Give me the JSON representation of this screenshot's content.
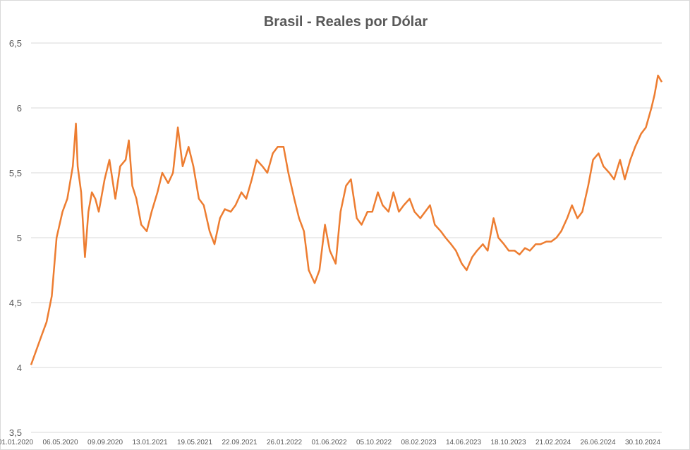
{
  "chart_data": {
    "type": "line",
    "title": "Brasil - Reales por Dólar",
    "xlabel": "",
    "ylabel": "",
    "ylim": [
      3.5,
      6.5
    ],
    "yticks": [
      3.5,
      4,
      4.5,
      5,
      5.5,
      6,
      6.5
    ],
    "yticklabels": [
      "3,5",
      "4",
      "4,5",
      "5",
      "5,5",
      "6",
      "6,5"
    ],
    "xticklabels": [
      "01.01.2020",
      "06.05.2020",
      "09.09.2020",
      "13.01.2021",
      "19.05.2021",
      "22.09.2021",
      "26.01.2022",
      "01.06.2022",
      "05.10.2022",
      "08.02.2023",
      "14.06.2023",
      "18.10.2023",
      "21.02.2024",
      "26.06.2024",
      "30.10.2024"
    ],
    "grid": true,
    "legend": "none",
    "color": "#ED7D31",
    "x": [
      "01.01.2020",
      "01.02.2020",
      "15.02.2020",
      "01.03.2020",
      "15.03.2020",
      "01.04.2020",
      "15.04.2020",
      "01.05.2020",
      "10.05.2020",
      "15.05.2020",
      "25.05.2020",
      "05.06.2020",
      "15.06.2020",
      "25.06.2020",
      "05.07.2020",
      "15.07.2020",
      "01.08.2020",
      "15.08.2020",
      "01.09.2020",
      "15.09.2020",
      "01.10.2020",
      "10.10.2020",
      "20.10.2020",
      "01.11.2020",
      "15.11.2020",
      "01.12.2020",
      "15.12.2020",
      "01.01.2021",
      "15.01.2021",
      "01.02.2021",
      "15.02.2021",
      "01.03.2021",
      "15.03.2021",
      "01.04.2021",
      "15.04.2021",
      "01.05.2021",
      "15.05.2021",
      "01.06.2021",
      "15.06.2021",
      "01.07.2021",
      "15.07.2021",
      "01.08.2021",
      "15.08.2021",
      "01.09.2021",
      "15.09.2021",
      "01.10.2021",
      "15.10.2021",
      "01.11.2021",
      "15.11.2021",
      "01.12.2021",
      "15.12.2021",
      "01.01.2022",
      "15.01.2022",
      "01.02.2022",
      "15.02.2022",
      "01.03.2022",
      "15.03.2022",
      "01.04.2022",
      "15.04.2022",
      "01.05.2022",
      "15.05.2022",
      "01.06.2022",
      "15.06.2022",
      "01.07.2022",
      "15.07.2022",
      "01.08.2022",
      "15.08.2022",
      "01.09.2022",
      "15.09.2022",
      "01.10.2022",
      "15.10.2022",
      "01.11.2022",
      "15.11.2022",
      "01.12.2022",
      "15.12.2022",
      "01.01.2023",
      "15.01.2023",
      "01.02.2023",
      "15.02.2023",
      "01.03.2023",
      "15.03.2023",
      "01.04.2023",
      "15.04.2023",
      "01.05.2023",
      "15.05.2023",
      "01.06.2023",
      "15.06.2023",
      "01.07.2023",
      "15.07.2023",
      "01.08.2023",
      "15.08.2023",
      "01.09.2023",
      "15.09.2023",
      "01.10.2023",
      "15.10.2023",
      "01.11.2023",
      "15.11.2023",
      "01.12.2023",
      "15.12.2023",
      "01.01.2024",
      "15.01.2024",
      "01.02.2024",
      "15.02.2024",
      "01.03.2024",
      "15.03.2024",
      "01.04.2024",
      "15.04.2024",
      "01.05.2024",
      "15.05.2024",
      "01.06.2024",
      "15.06.2024",
      "01.07.2024",
      "15.07.2024",
      "01.08.2024",
      "15.08.2024",
      "01.09.2024",
      "15.09.2024",
      "01.10.2024",
      "15.10.2024",
      "01.11.2024",
      "15.11.2024",
      "01.12.2024",
      "10.12.2024",
      "20.12.2024",
      "31.12.2024"
    ],
    "values": [
      4.02,
      4.25,
      4.35,
      4.55,
      5.0,
      5.2,
      5.3,
      5.55,
      5.88,
      5.55,
      5.35,
      4.85,
      5.2,
      5.35,
      5.3,
      5.2,
      5.45,
      5.6,
      5.3,
      5.55,
      5.6,
      5.75,
      5.4,
      5.3,
      5.1,
      5.05,
      5.2,
      5.35,
      5.5,
      5.42,
      5.5,
      5.85,
      5.55,
      5.7,
      5.55,
      5.3,
      5.25,
      5.05,
      4.95,
      5.15,
      5.22,
      5.2,
      5.25,
      5.35,
      5.3,
      5.45,
      5.6,
      5.55,
      5.5,
      5.65,
      5.7,
      5.7,
      5.5,
      5.3,
      5.15,
      5.05,
      4.75,
      4.65,
      4.75,
      5.1,
      4.9,
      4.8,
      5.2,
      5.4,
      5.45,
      5.15,
      5.1,
      5.2,
      5.2,
      5.35,
      5.25,
      5.2,
      5.35,
      5.2,
      5.25,
      5.3,
      5.2,
      5.15,
      5.2,
      5.25,
      5.1,
      5.05,
      5.0,
      4.95,
      4.9,
      4.8,
      4.75,
      4.85,
      4.9,
      4.95,
      4.9,
      5.15,
      5.0,
      4.95,
      4.9,
      4.9,
      4.87,
      4.92,
      4.9,
      4.95,
      4.95,
      4.97,
      4.97,
      5.0,
      5.05,
      5.15,
      5.25,
      5.15,
      5.2,
      5.4,
      5.6,
      5.65,
      5.55,
      5.5,
      5.45,
      5.6,
      5.45,
      5.6,
      5.7,
      5.8,
      5.85,
      6.0,
      6.1,
      6.25,
      6.2
    ]
  }
}
